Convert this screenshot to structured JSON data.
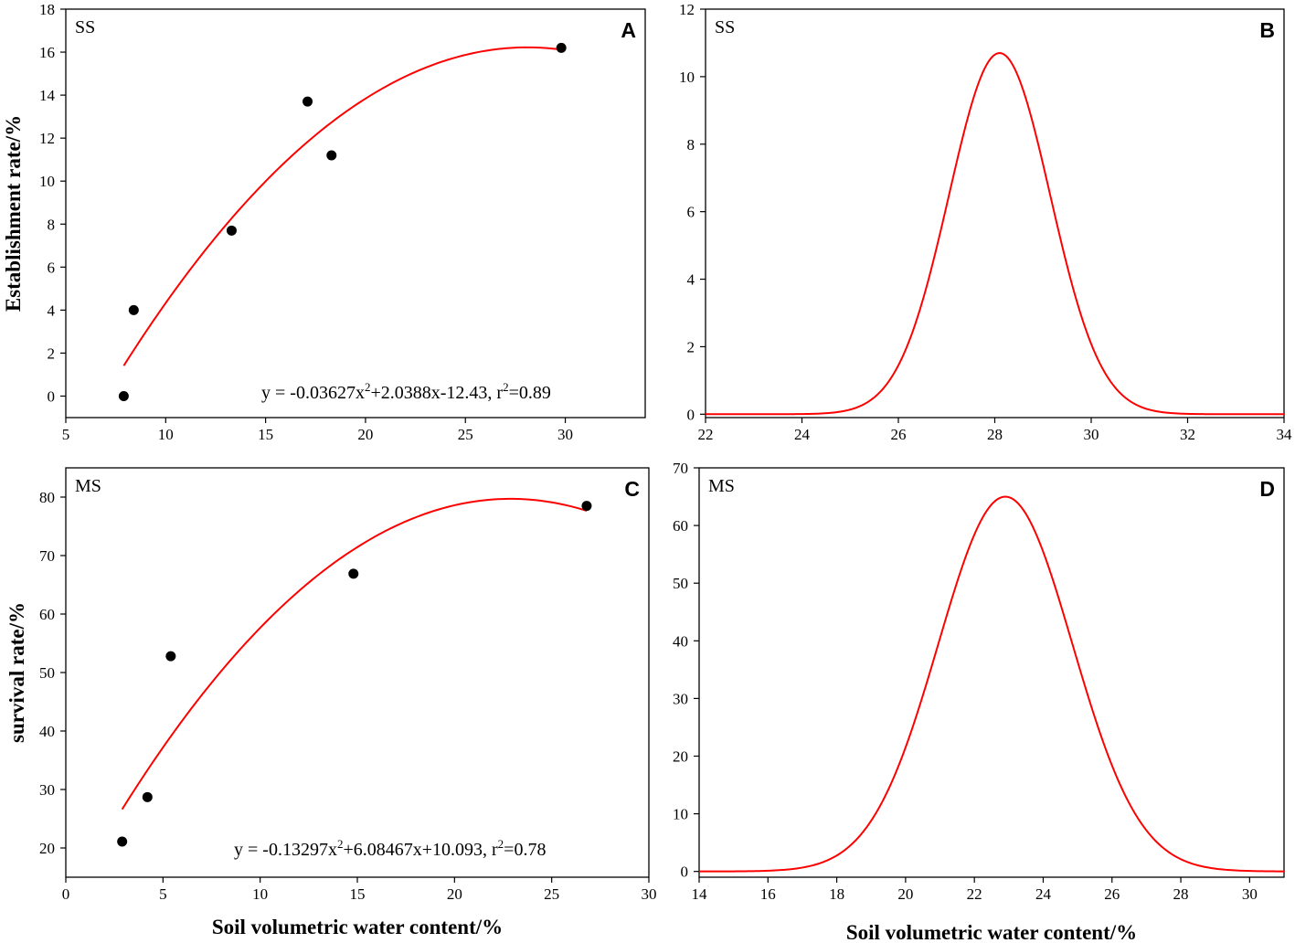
{
  "chart_data": [
    {
      "id": "A",
      "type": "scatter",
      "letter": "A",
      "label": "SS",
      "ylabel": "Establishment rate/%",
      "xlabel": "",
      "xlim": [
        5,
        34
      ],
      "ylim": [
        -1,
        18
      ],
      "xticks": [
        5,
        10,
        15,
        20,
        25,
        30
      ],
      "yticks": [
        0,
        2,
        4,
        6,
        8,
        10,
        12,
        14,
        16,
        18
      ],
      "points": [
        {
          "x": 7.9,
          "y": 0.0
        },
        {
          "x": 8.4,
          "y": 4.0
        },
        {
          "x": 13.3,
          "y": 7.7
        },
        {
          "x": 17.1,
          "y": 13.7
        },
        {
          "x": 18.3,
          "y": 11.2
        },
        {
          "x": 29.8,
          "y": 16.2
        }
      ],
      "fit": {
        "a": -0.03627,
        "b": 2.0388,
        "c": -12.43,
        "x_from": 7.9,
        "x_to": 29.8,
        "color": "#ff0000"
      },
      "equation": {
        "prefix": "y = -0.03627x",
        "sup1": "2",
        "middle": "+2.0388x-12.43, r",
        "sup2": "2",
        "suffix": "=0.89"
      }
    },
    {
      "id": "B",
      "type": "line",
      "letter": "B",
      "label": "SS",
      "ylabel": "",
      "xlabel": "",
      "xlim": [
        22,
        34
      ],
      "ylim": [
        -0.1,
        12
      ],
      "xticks": [
        22,
        24,
        26,
        28,
        30,
        32,
        34
      ],
      "yticks": [
        0,
        2,
        4,
        6,
        8,
        10,
        12
      ],
      "curve": {
        "kind": "gaussian",
        "amplitude": 10.7,
        "mean": 28.1,
        "sd": 1.05,
        "baseline": 0,
        "x_from": 22,
        "x_to": 34,
        "color": "#ff0000"
      }
    },
    {
      "id": "C",
      "type": "scatter",
      "letter": "C",
      "label": "MS",
      "ylabel": "survival rate/%",
      "xlabel": "Soil volumetric water content/%",
      "xlim": [
        0,
        30
      ],
      "ylim": [
        15,
        85
      ],
      "xticks": [
        0,
        5,
        10,
        15,
        20,
        25,
        30
      ],
      "yticks": [
        20,
        30,
        40,
        50,
        60,
        70,
        80
      ],
      "points": [
        {
          "x": 2.9,
          "y": 21.1
        },
        {
          "x": 4.2,
          "y": 28.7
        },
        {
          "x": 5.4,
          "y": 52.8
        },
        {
          "x": 14.8,
          "y": 66.9
        },
        {
          "x": 26.8,
          "y": 78.5
        }
      ],
      "fit": {
        "a": -0.13297,
        "b": 6.08467,
        "c": 10.093,
        "x_from": 2.9,
        "x_to": 26.8,
        "color": "#ff0000"
      },
      "equation": {
        "prefix": "y = -0.13297x",
        "sup1": "2",
        "middle": "+6.08467x+10.093, r",
        "sup2": "2",
        "suffix": "=0.78"
      }
    },
    {
      "id": "D",
      "type": "line",
      "letter": "D",
      "label": "MS",
      "ylabel": "",
      "xlabel": "Soil volumetric water content/%",
      "xlim": [
        14,
        31
      ],
      "ylim": [
        -1,
        70
      ],
      "xticks": [
        14,
        16,
        18,
        20,
        22,
        24,
        26,
        28,
        30
      ],
      "yticks": [
        0,
        10,
        20,
        30,
        40,
        50,
        60,
        70
      ],
      "curve": {
        "kind": "gaussian",
        "amplitude": 65,
        "mean": 22.9,
        "sd": 1.95,
        "baseline": 0,
        "x_from": 14,
        "x_to": 31,
        "color": "#ff0000"
      }
    }
  ]
}
